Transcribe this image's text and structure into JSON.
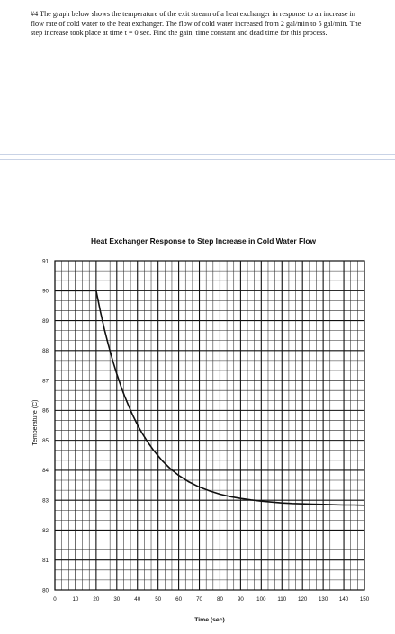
{
  "problem": {
    "text": "#4 The graph below shows the temperature of the exit stream of a heat exchanger in response to an increase in flow rate of cold water to the heat exchanger. The flow of cold water increased from 2 gal/min to 5 gal/min. The step increase took place at time t = 0 sec. Find the gain, time constant and dead time for this process."
  },
  "chart_data": {
    "type": "line",
    "title": "Heat Exchanger Response to Step Increase in Cold Water Flow",
    "xlabel": "Time (sec)",
    "ylabel": "Temperature (C)",
    "xlim": [
      0,
      150
    ],
    "ylim": [
      80,
      91
    ],
    "x_ticks": [
      "0",
      "10",
      "20",
      "30",
      "40",
      "50",
      "60",
      "70",
      "80",
      "90",
      "100",
      "110",
      "120",
      "130",
      "140",
      "150"
    ],
    "y_ticks": [
      "80",
      "81",
      "82",
      "83",
      "84",
      "85",
      "86",
      "87",
      "88",
      "89",
      "90",
      "91"
    ],
    "grid": true,
    "minor_grid_per_major": 3,
    "series": [
      {
        "x": [
          0,
          5,
          10,
          15,
          20,
          22,
          24,
          26,
          28,
          30,
          32,
          34,
          36,
          38,
          40,
          42,
          45,
          48,
          52,
          56,
          60,
          65,
          70,
          75,
          80,
          85,
          90,
          95,
          100,
          105,
          110,
          115,
          120,
          125,
          130,
          135,
          140,
          145,
          150
        ],
        "y": [
          90,
          90,
          90,
          90,
          90,
          89.32,
          88.71,
          88.17,
          87.67,
          87.22,
          86.81,
          86.44,
          86.11,
          85.8,
          85.52,
          85.27,
          84.94,
          84.65,
          84.32,
          84.05,
          83.83,
          83.61,
          83.44,
          83.31,
          83.2,
          83.12,
          83.06,
          83.01,
          82.97,
          82.94,
          82.91,
          82.89,
          82.88,
          82.87,
          82.86,
          82.85,
          82.84,
          82.84,
          82.83
        ],
        "color": "#111111"
      }
    ]
  }
}
